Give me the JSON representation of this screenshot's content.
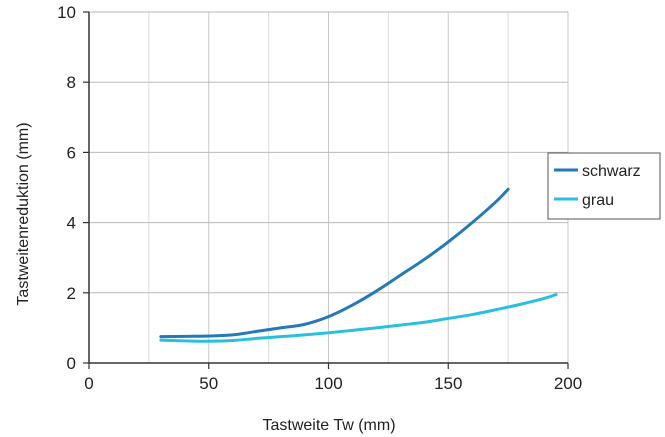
{
  "chart_data": {
    "type": "line",
    "title": "",
    "xlabel": "Tastweite Tw (mm)",
    "ylabel": "Tastweitenreduktion (mm)",
    "xlim": [
      0,
      200
    ],
    "ylim": [
      0,
      10
    ],
    "xticks": [
      0,
      50,
      100,
      150,
      200
    ],
    "yticks": [
      0,
      2,
      4,
      6,
      8,
      10
    ],
    "grid": true,
    "legend_position": "right",
    "series": [
      {
        "name": "schwarz",
        "color": "#2479b7",
        "x": [
          30,
          40,
          50,
          60,
          70,
          80,
          90,
          100,
          110,
          120,
          130,
          140,
          150,
          160,
          170,
          175
        ],
        "y": [
          0.75,
          0.76,
          0.77,
          0.8,
          0.9,
          1.0,
          1.1,
          1.32,
          1.65,
          2.05,
          2.5,
          2.95,
          3.45,
          4.0,
          4.6,
          4.95
        ]
      },
      {
        "name": "grau",
        "color": "#29bfdf",
        "x": [
          30,
          40,
          50,
          60,
          70,
          80,
          90,
          100,
          110,
          120,
          130,
          140,
          150,
          160,
          170,
          180,
          190,
          195
        ],
        "y": [
          0.65,
          0.63,
          0.62,
          0.64,
          0.7,
          0.75,
          0.8,
          0.86,
          0.93,
          1.0,
          1.08,
          1.16,
          1.27,
          1.38,
          1.52,
          1.67,
          1.84,
          1.95
        ]
      }
    ]
  }
}
